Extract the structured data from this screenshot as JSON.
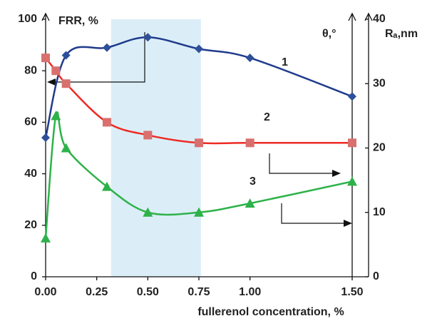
{
  "chart_data": {
    "type": "line",
    "y_title": "FRR, %",
    "y_title_mid": "θ,°",
    "y2_title": "Rₐ,nm",
    "x_title": "fullerenol concentration, %",
    "xlim": [
      0,
      1.5
    ],
    "xticks": [
      {
        "value": 0,
        "label": "0.00"
      },
      {
        "value": 0.25,
        "label": "0.25"
      },
      {
        "value": 0.5,
        "label": "0.50"
      },
      {
        "value": 0.75,
        "label": "0.75"
      },
      {
        "value": 1,
        "label": "1.00"
      },
      {
        "value": 1.5,
        "label": "1.50"
      }
    ],
    "ylim": [
      0,
      100
    ],
    "yticks": [
      0,
      20,
      40,
      60,
      80,
      100
    ],
    "y2lim": [
      0,
      40
    ],
    "y2ticks": [
      0,
      10,
      20,
      30,
      40
    ],
    "shaded_range": [
      0.32,
      0.76
    ],
    "shade_color": "#dbeef7",
    "series": [
      {
        "name": "1",
        "color": "#1f3b8c",
        "marker": "diamond",
        "marker_color": "#2e4f9a",
        "x": [
          0,
          0.1,
          0.3,
          0.5,
          0.75,
          1.0,
          1.5
        ],
        "values": [
          54,
          86,
          89,
          93,
          88.5,
          85,
          70
        ]
      },
      {
        "name": "2",
        "color": "#ee2a24",
        "marker": "square",
        "marker_color": "#d9706e",
        "x": [
          0,
          0.05,
          0.1,
          0.3,
          0.5,
          0.75,
          1.0,
          1.5
        ],
        "values": [
          85,
          80,
          75,
          60,
          55,
          52,
          52,
          52
        ]
      },
      {
        "name": "3",
        "color": "#2db24a",
        "marker": "triangle",
        "marker_color": "#2db24a",
        "axis": "y2",
        "x": [
          0,
          0.05,
          0.1,
          0.3,
          0.5,
          0.75,
          1.0,
          1.5
        ],
        "values": [
          6,
          25,
          20,
          14,
          10,
          10,
          11.4,
          14.8
        ]
      }
    ]
  }
}
